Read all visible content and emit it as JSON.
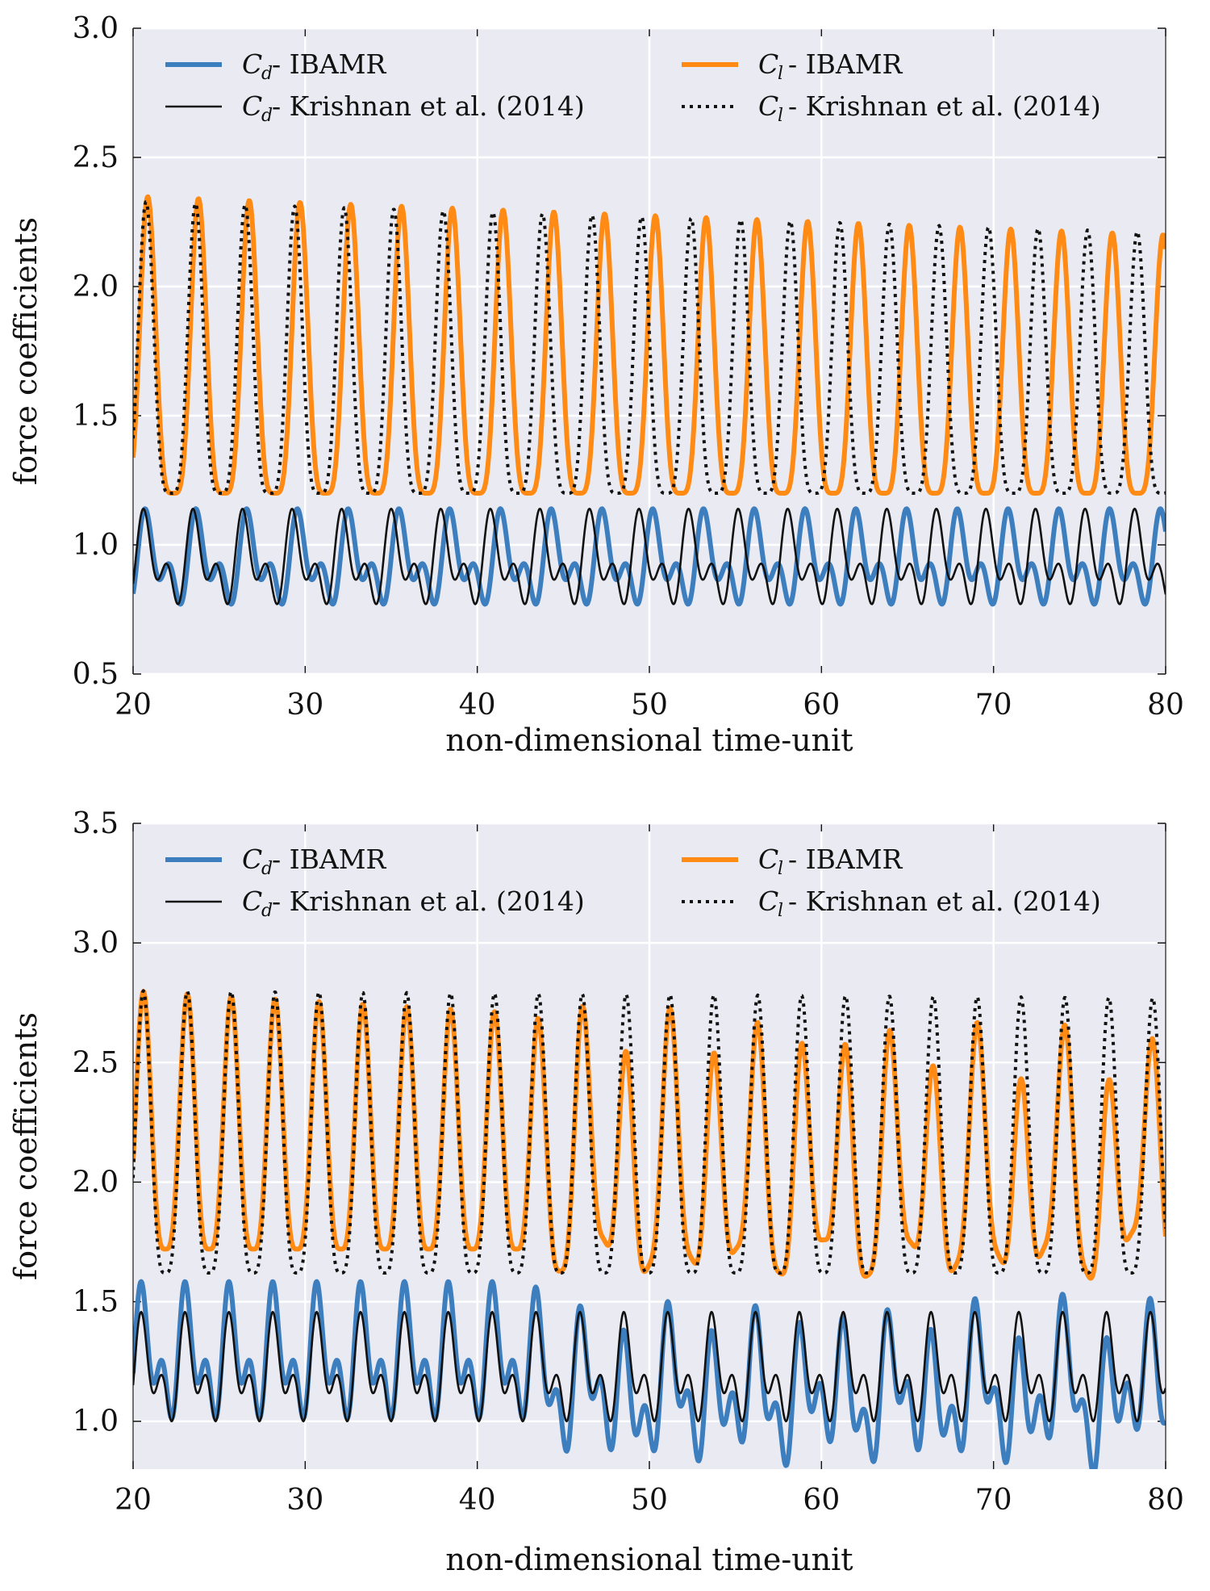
{
  "colors": {
    "background": "#eaeaf2",
    "grid": "#ffffff",
    "drag_ibamr": "#3d7ebf",
    "lift_ibamr": "#ff8a14",
    "reference": "#111111"
  },
  "legend_labels": {
    "cd_ibamr": {
      "sym": "C",
      "sub": "d",
      "text": " - IBAMR"
    },
    "cl_ibamr": {
      "sym": "C",
      "sub": "l",
      "text": " - IBAMR"
    },
    "cd_ref": {
      "sym": "C",
      "sub": "d",
      "text": " - Krishnan et al. (2014)"
    },
    "cl_ref": {
      "sym": "C",
      "sub": "l",
      "text": " - Krishnan et al. (2014)"
    }
  },
  "chart_data": [
    {
      "type": "line",
      "xlabel": "non-dimensional time-unit",
      "ylabel": "force coefficients",
      "xlim": [
        20,
        80
      ],
      "ylim": [
        0.5,
        3.0
      ],
      "xticks": [
        "20",
        "30",
        "40",
        "50",
        "60",
        "70",
        "80"
      ],
      "yticks": [
        "0.5",
        "1.0",
        "1.5",
        "2.0",
        "2.5",
        "3.0"
      ],
      "grid": true,
      "legend_placement": "top",
      "series": [
        {
          "name": "C_l - IBAMR",
          "style": "solid-thick-orange",
          "period": 2.95,
          "phase": 20.85,
          "min": 1.2,
          "max": [
            2.35,
            2.2
          ],
          "sharp": 2.2
        },
        {
          "name": "C_l - Krishnan et al. (2014)",
          "style": "dotted-black",
          "period": 2.88,
          "phase": 20.75,
          "min": 1.2,
          "max": [
            2.33,
            2.21
          ],
          "sharp": 2.2
        },
        {
          "name": "C_d - IBAMR",
          "style": "solid-thick-blue",
          "period": 2.95,
          "phase": 20.85,
          "min": 0.73,
          "max": 1.15,
          "sharp": 1.6
        },
        {
          "name": "C_d - Krishnan et al. (2014)",
          "style": "solid-thin-black",
          "period": 2.88,
          "phase": 20.75,
          "min": 0.73,
          "max": 1.15,
          "sharp": 1.6
        }
      ]
    },
    {
      "type": "line",
      "xlabel": "non-dimensional time-unit",
      "ylabel": "force coefficients",
      "xlim": [
        20,
        80
      ],
      "ylim": [
        0.8,
        3.5
      ],
      "xticks": [
        "20",
        "30",
        "40",
        "50",
        "60",
        "70",
        "80"
      ],
      "yticks": [
        "1.0",
        "1.5",
        "2.0",
        "2.5",
        "3.0",
        "3.5"
      ],
      "grid": true,
      "legend_placement": "top",
      "series": [
        {
          "name": "C_l - IBAMR",
          "style": "solid-thick-orange",
          "period": 2.55,
          "phase": 20.6,
          "min": 1.72,
          "max": [
            2.8,
            2.55
          ],
          "sharp": 1.8,
          "irregular_after": 43
        },
        {
          "name": "C_l - Krishnan et al. (2014)",
          "style": "dotted-black",
          "period": 2.55,
          "phase": 20.6,
          "min": 1.62,
          "max": [
            2.8,
            2.77
          ],
          "sharp": 1.8
        },
        {
          "name": "C_d - IBAMR",
          "style": "solid-thick-blue",
          "period": 2.55,
          "phase": 20.6,
          "min": 0.95,
          "max": 1.6,
          "sharp": 1.4,
          "irregular_after": 43
        },
        {
          "name": "C_d - Krishnan et al. (2014)",
          "style": "solid-thin-black",
          "period": 2.55,
          "phase": 20.6,
          "min": 0.95,
          "max": 1.47,
          "sharp": 1.4
        }
      ]
    }
  ]
}
